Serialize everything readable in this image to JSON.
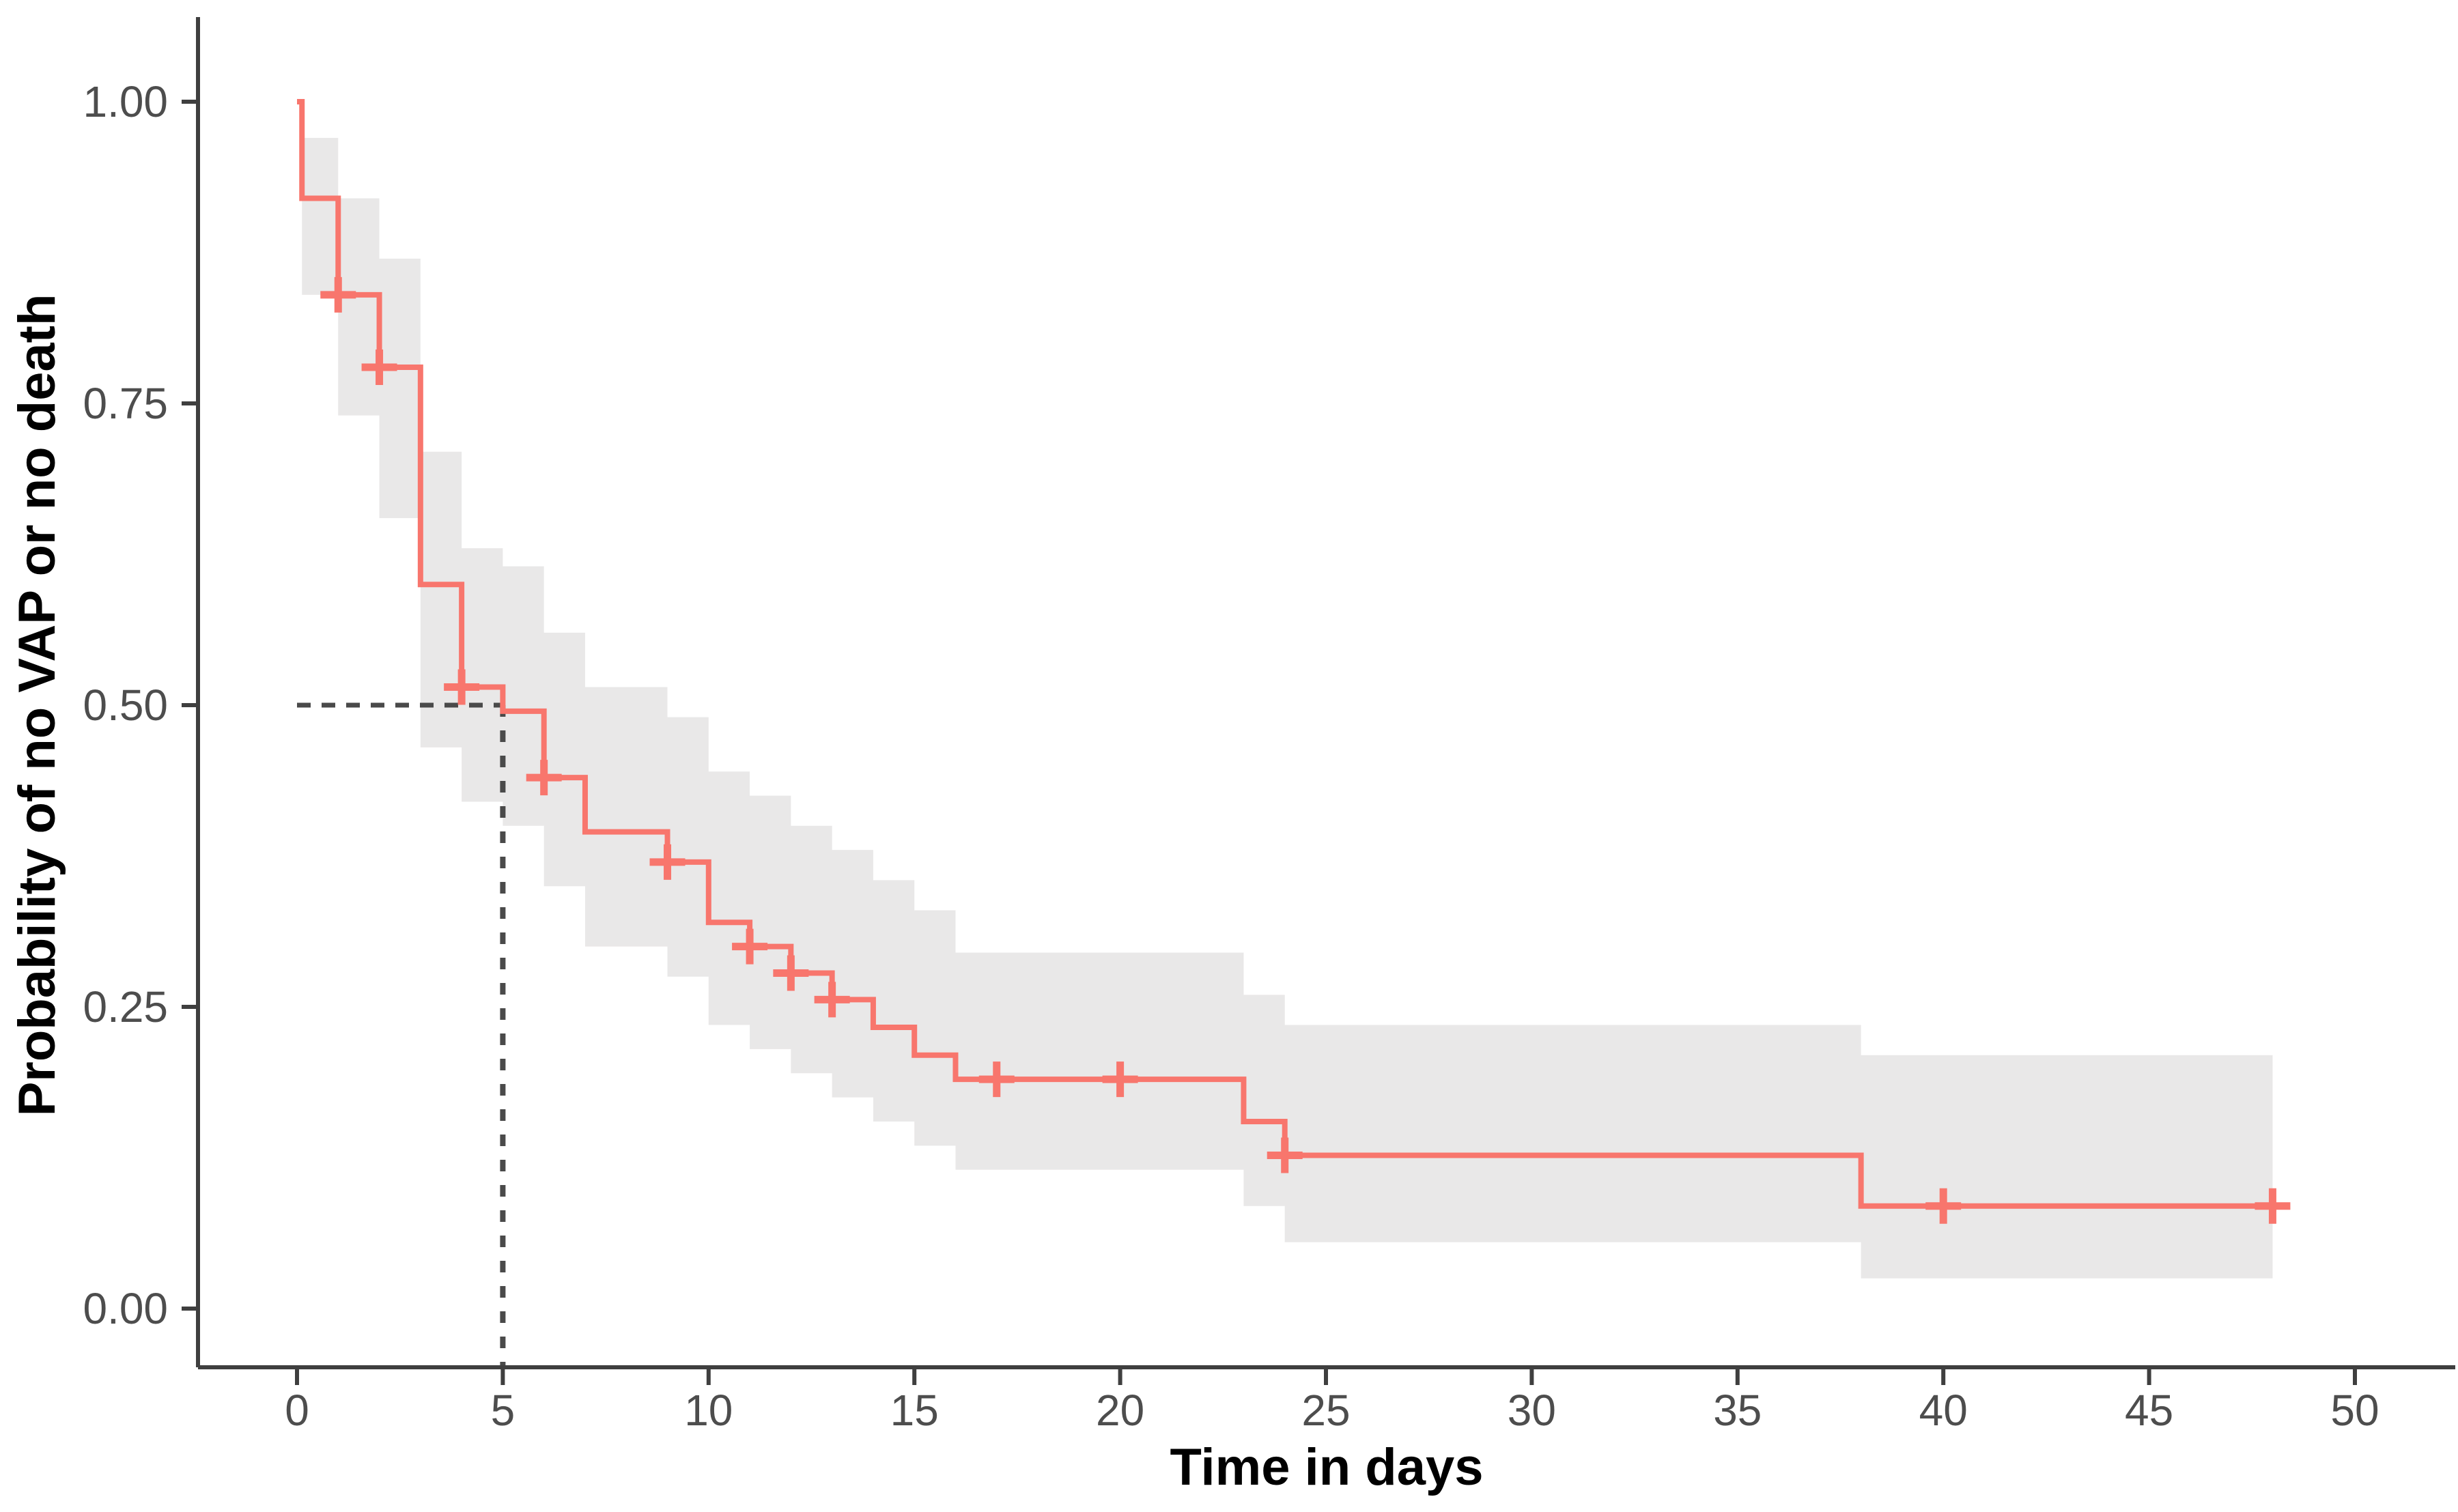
{
  "chart_data": {
    "type": "line",
    "subtype": "kaplan-meier-step-curve",
    "title": "",
    "xlabel": "Time in days",
    "ylabel": "Probability of no VAP or no death",
    "x_ticks": [
      0,
      5,
      10,
      15,
      20,
      25,
      30,
      35,
      40,
      45,
      50
    ],
    "y_ticks": [
      0.0,
      0.25,
      0.5,
      0.75,
      1.0
    ],
    "y_tick_labels": [
      "0.00",
      "0.25",
      "0.50",
      "0.75",
      "1.00"
    ],
    "xlim": [
      0,
      50
    ],
    "ylim": [
      0,
      1
    ],
    "grid": false,
    "legend_position": "none",
    "colors": {
      "curve": "#F8766D",
      "ci_band": "#E9E8E8",
      "axis_line": "#3f3f3f",
      "tick_label": "#4d4d4d",
      "axis_title": "#000000",
      "median_dash": "#4a4a4a",
      "background": "#ffffff"
    },
    "median_survival": {
      "time_days": 5,
      "probability": 0.5
    },
    "series": [
      {
        "name": "Probability of no VAP or no death",
        "steps": [
          {
            "t0": 0,
            "t1": 0.12,
            "s": 1.0,
            "lo": 1.0,
            "hi": 1.0
          },
          {
            "t0": 0.12,
            "t1": 1,
            "s": 0.92,
            "lo": 0.84,
            "hi": 0.97
          },
          {
            "t0": 1,
            "t1": 2,
            "s": 0.84,
            "lo": 0.74,
            "hi": 0.92
          },
          {
            "t0": 2,
            "t1": 3,
            "s": 0.78,
            "lo": 0.655,
            "hi": 0.87
          },
          {
            "t0": 3,
            "t1": 4,
            "s": 0.6,
            "lo": 0.465,
            "hi": 0.71
          },
          {
            "t0": 4,
            "t1": 5,
            "s": 0.515,
            "lo": 0.42,
            "hi": 0.63
          },
          {
            "t0": 5,
            "t1": 6,
            "s": 0.495,
            "lo": 0.4,
            "hi": 0.615
          },
          {
            "t0": 6,
            "t1": 7,
            "s": 0.44,
            "lo": 0.35,
            "hi": 0.56
          },
          {
            "t0": 7,
            "t1": 9,
            "s": 0.395,
            "lo": 0.3,
            "hi": 0.515
          },
          {
            "t0": 9,
            "t1": 10,
            "s": 0.37,
            "lo": 0.275,
            "hi": 0.49
          },
          {
            "t0": 10,
            "t1": 11,
            "s": 0.32,
            "lo": 0.235,
            "hi": 0.445
          },
          {
            "t0": 11,
            "t1": 12,
            "s": 0.3,
            "lo": 0.215,
            "hi": 0.425
          },
          {
            "t0": 12,
            "t1": 13,
            "s": 0.278,
            "lo": 0.195,
            "hi": 0.4
          },
          {
            "t0": 13,
            "t1": 14,
            "s": 0.256,
            "lo": 0.175,
            "hi": 0.38
          },
          {
            "t0": 14,
            "t1": 15,
            "s": 0.233,
            "lo": 0.155,
            "hi": 0.355
          },
          {
            "t0": 15,
            "t1": 16,
            "s": 0.21,
            "lo": 0.135,
            "hi": 0.33
          },
          {
            "t0": 16,
            "t1": 23,
            "s": 0.19,
            "lo": 0.115,
            "hi": 0.295
          },
          {
            "t0": 23,
            "t1": 24,
            "s": 0.155,
            "lo": 0.085,
            "hi": 0.26
          },
          {
            "t0": 24,
            "t1": 38,
            "s": 0.127,
            "lo": 0.055,
            "hi": 0.235
          },
          {
            "t0": 38,
            "t1": 48,
            "s": 0.085,
            "lo": 0.025,
            "hi": 0.21
          }
        ]
      }
    ],
    "censor_marks": [
      {
        "t": 1,
        "s": 0.84
      },
      {
        "t": 2,
        "s": 0.78
      },
      {
        "t": 4,
        "s": 0.515
      },
      {
        "t": 6,
        "s": 0.44
      },
      {
        "t": 9,
        "s": 0.37
      },
      {
        "t": 11,
        "s": 0.3
      },
      {
        "t": 12,
        "s": 0.278
      },
      {
        "t": 13,
        "s": 0.256
      },
      {
        "t": 17,
        "s": 0.19
      },
      {
        "t": 20,
        "s": 0.19
      },
      {
        "t": 24,
        "s": 0.127
      },
      {
        "t": 40,
        "s": 0.085
      },
      {
        "t": 48,
        "s": 0.085
      }
    ]
  }
}
